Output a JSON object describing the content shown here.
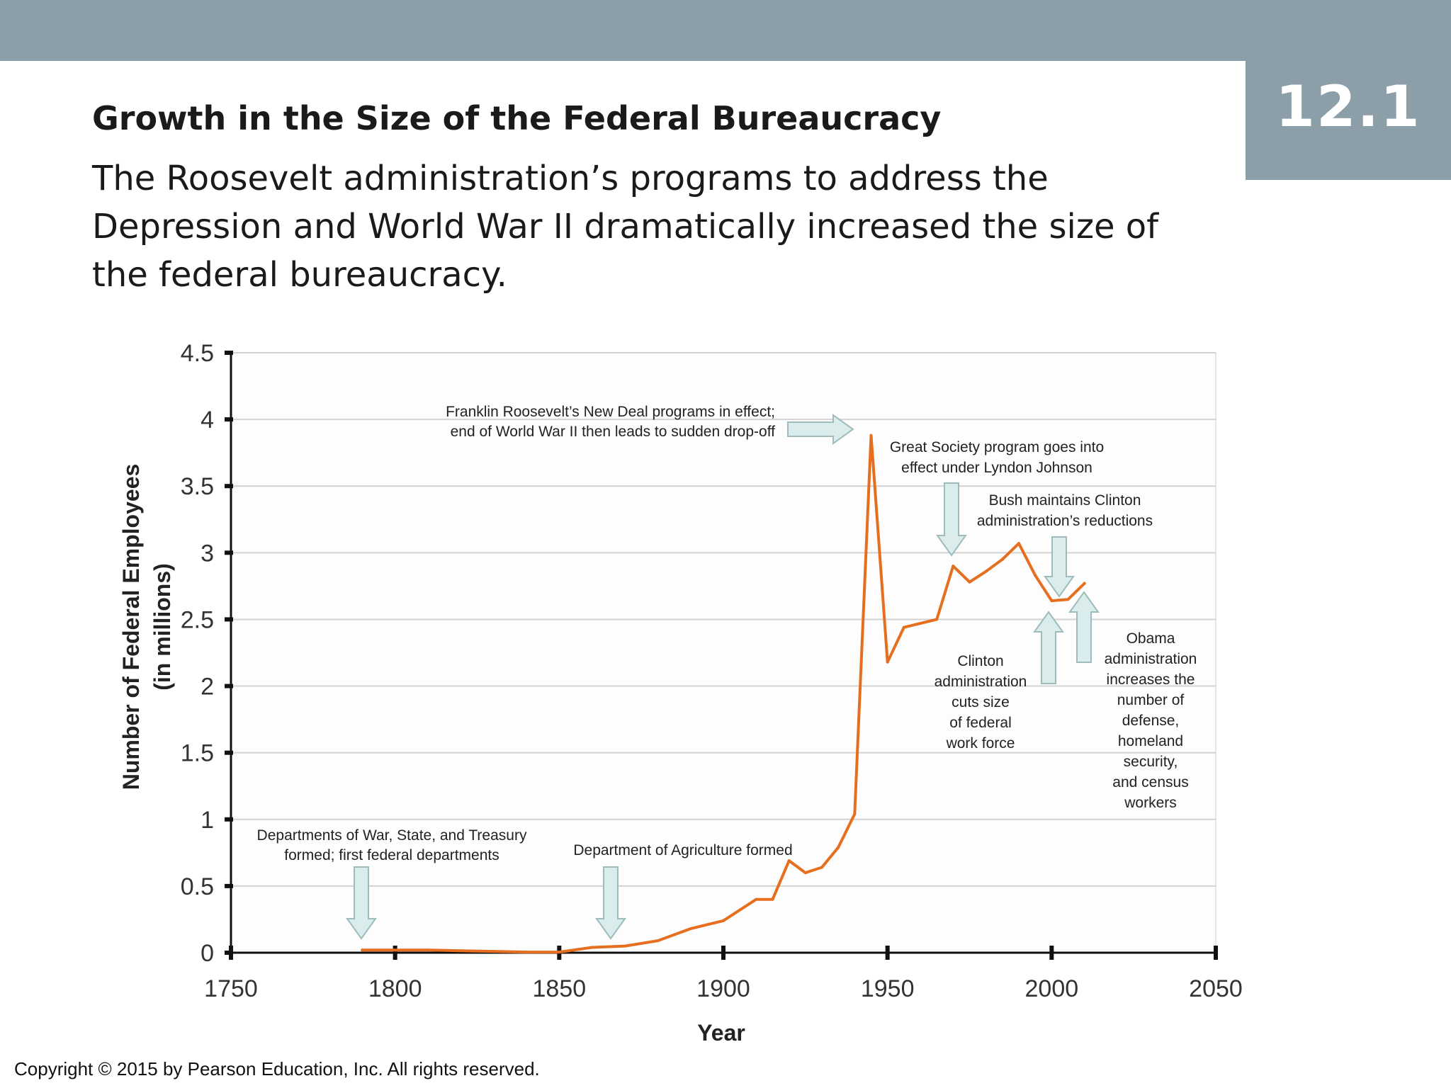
{
  "header": {
    "section_number": "12.1",
    "title": "Growth in the Size of the Federal Bureaucracy",
    "subtitle": "The Roosevelt administration’s programs to address the Depression and World War II dramatically increased the size of the federal bureaucracy."
  },
  "footer": {
    "copyright": "Copyright © 2015 by Pearson Education, Inc. All rights reserved."
  },
  "colors": {
    "band": "#8c9fa8",
    "line": "#e56f1f",
    "arrow_fill": "#dbecec",
    "arrow_stroke": "#9fbcbc",
    "plot_bg": "#fdfdfd",
    "grid": "#d2d2d2"
  },
  "chart_data": {
    "type": "line",
    "title": "",
    "xlabel": "Year",
    "ylabel": "Number of Federal Employees",
    "ylabel_sub": "(in millions)",
    "xlim": [
      1750,
      2050
    ],
    "ylim": [
      0,
      4.5
    ],
    "grid": true,
    "legend": "none",
    "x_ticks": [
      1750,
      1800,
      1850,
      1900,
      1950,
      2000,
      2050
    ],
    "x_tick_labels": [
      "1750",
      "1800",
      "1850",
      "1900",
      "1950",
      "2000",
      "2050"
    ],
    "y_ticks": [
      0,
      0.5,
      1,
      1.5,
      2,
      2.5,
      3,
      3.5,
      4,
      4.5
    ],
    "y_tick_labels": [
      "0",
      "0.5",
      "1",
      "1.5",
      "2",
      "2.5",
      "3",
      "3.5",
      "4",
      "4.5"
    ],
    "series": [
      {
        "name": "Federal employees",
        "x": [
          1790,
          1800,
          1810,
          1820,
          1830,
          1840,
          1850,
          1860,
          1870,
          1880,
          1890,
          1900,
          1910,
          1915,
          1920,
          1925,
          1930,
          1935,
          1940,
          1945,
          1950,
          1955,
          1960,
          1965,
          1970,
          1975,
          1980,
          1985,
          1990,
          1995,
          2000,
          2005,
          2010
        ],
        "values": [
          0.02,
          0.02,
          0.02,
          0.015,
          0.01,
          0.005,
          0.005,
          0.04,
          0.05,
          0.09,
          0.18,
          0.24,
          0.4,
          0.4,
          0.69,
          0.6,
          0.64,
          0.79,
          1.04,
          3.88,
          2.18,
          2.44,
          2.47,
          2.5,
          2.9,
          2.78,
          2.86,
          2.95,
          3.07,
          2.83,
          2.64,
          2.65,
          2.77
        ]
      }
    ],
    "annotations": [
      {
        "name": "annotation-departments",
        "lines": [
          "Departments of War, State, and Treasury",
          "formed; first federal departments"
        ]
      },
      {
        "name": "annotation-agriculture",
        "lines": [
          "Department of Agriculture formed"
        ]
      },
      {
        "name": "annotation-new-deal",
        "lines": [
          "Franklin Roosevelt’s New Deal programs in effect;",
          "end of World War II then leads to sudden drop-off"
        ]
      },
      {
        "name": "annotation-great-society",
        "lines": [
          "Great Society program goes into",
          "effect under Lyndon Johnson"
        ]
      },
      {
        "name": "annotation-bush",
        "lines": [
          "Bush maintains Clinton",
          "administration’s reductions"
        ]
      },
      {
        "name": "annotation-clinton",
        "lines": [
          "Clinton",
          "administration",
          "cuts size",
          "of federal",
          "work force"
        ]
      },
      {
        "name": "annotation-obama",
        "lines": [
          "Obama",
          "administration",
          "increases the",
          "number of",
          "defense,",
          "homeland",
          "security,",
          "and census",
          "workers"
        ]
      }
    ]
  }
}
